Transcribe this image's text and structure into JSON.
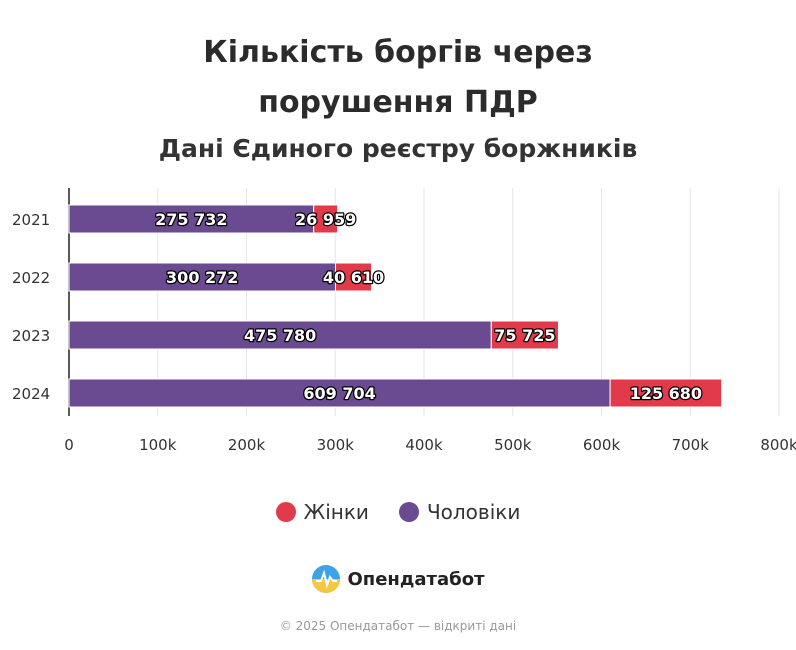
{
  "header": {
    "title_line1": "Кількість боргів через",
    "title_line2": "порушення ПДР",
    "subtitle": "Дані Єдиного реєстру боржників"
  },
  "legend": {
    "women": "Жінки",
    "men": "Чоловіки"
  },
  "brand": {
    "name": "Опендатабот"
  },
  "footer": {
    "copyright": "© 2025 Опендатабот — відкриті дані"
  },
  "colors": {
    "men": "#6a4a90",
    "women": "#e23a4a",
    "grid": "#e6e6e6",
    "logo_blue": "#3fa2e8",
    "logo_yellow": "#f5c842"
  },
  "chart_data": {
    "type": "bar",
    "orientation": "horizontal",
    "stacked": true,
    "categories": [
      "2021",
      "2022",
      "2023",
      "2024"
    ],
    "series": [
      {
        "name": "Чоловіки",
        "values": [
          275732,
          300272,
          475780,
          609704
        ],
        "labels": [
          "275 732",
          "300 272",
          "475 780",
          "609 704"
        ]
      },
      {
        "name": "Жінки",
        "values": [
          26959,
          40610,
          75725,
          125680
        ],
        "labels": [
          "26 959",
          "40 610",
          "75 725",
          "125 680"
        ]
      }
    ],
    "x_ticks": [
      "0",
      "100k",
      "200k",
      "300k",
      "400k",
      "500k",
      "600k",
      "700k",
      "800k"
    ],
    "xlim": [
      0,
      800000
    ],
    "grid": true,
    "legend_position": "bottom"
  }
}
